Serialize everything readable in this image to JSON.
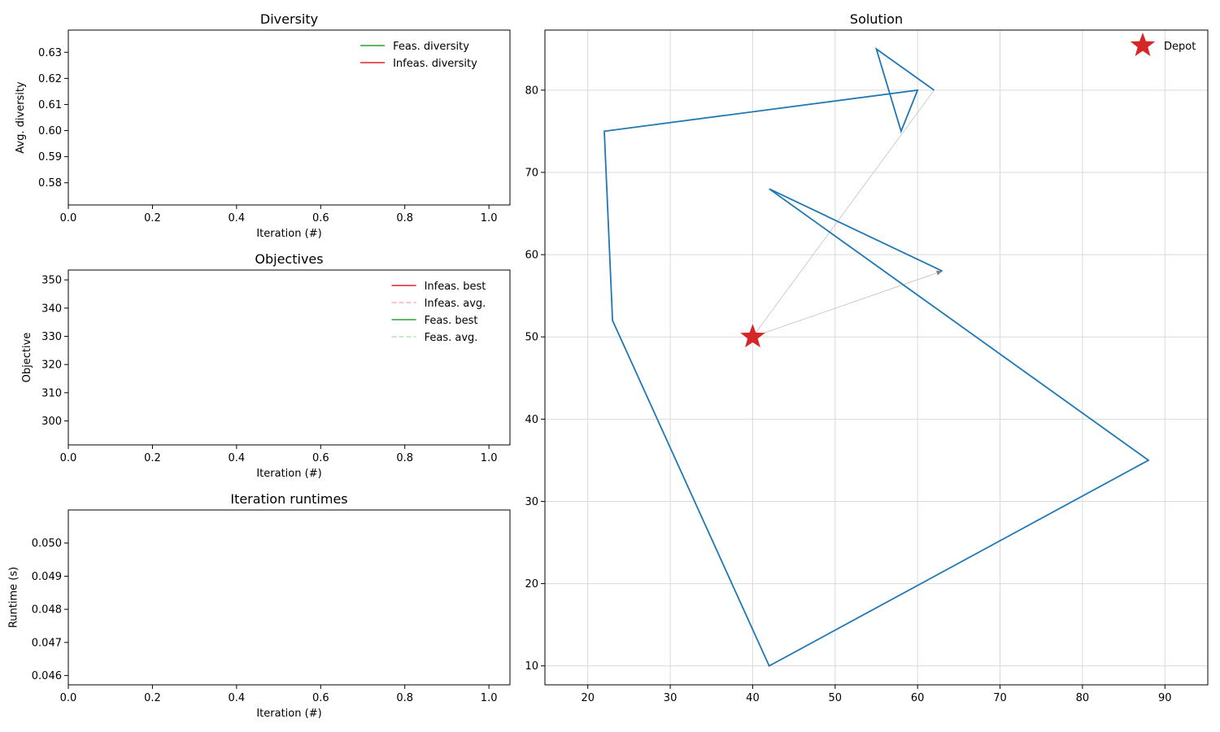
{
  "chart_data": [
    {
      "id": "diversity",
      "type": "line",
      "title": "Diversity",
      "xlabel": "Iteration (#)",
      "ylabel": "Avg. diversity",
      "xlim": [
        0.0,
        1.05
      ],
      "ylim": [
        0.5715,
        0.6385
      ],
      "xticks": [
        "0.0",
        "0.2",
        "0.4",
        "0.6",
        "0.8",
        "1.0"
      ],
      "xtick_values": [
        0.0,
        0.2,
        0.4,
        0.6,
        0.8,
        1.0
      ],
      "yticks": [
        "0.58",
        "0.59",
        "0.60",
        "0.61",
        "0.62",
        "0.63"
      ],
      "ytick_values": [
        0.58,
        0.59,
        0.6,
        0.61,
        0.62,
        0.63
      ],
      "grid": false,
      "legend_position": "upper right",
      "series": [
        {
          "name": "Feas. diversity",
          "color": "#2ca02c",
          "dash": "solid",
          "x": [],
          "y": []
        },
        {
          "name": "Infeas. diversity",
          "color": "#d62728",
          "dash": "solid",
          "x": [],
          "y": []
        }
      ]
    },
    {
      "id": "objectives",
      "type": "line",
      "title": "Objectives",
      "xlabel": "Iteration (#)",
      "ylabel": "Objective",
      "xlim": [
        0.0,
        1.05
      ],
      "ylim": [
        291.5,
        353.5
      ],
      "xticks": [
        "0.0",
        "0.2",
        "0.4",
        "0.6",
        "0.8",
        "1.0"
      ],
      "xtick_values": [
        0.0,
        0.2,
        0.4,
        0.6,
        0.8,
        1.0
      ],
      "yticks": [
        "300",
        "310",
        "320",
        "330",
        "340",
        "350"
      ],
      "ytick_values": [
        300,
        310,
        320,
        330,
        340,
        350
      ],
      "grid": false,
      "legend_position": "upper right",
      "series": [
        {
          "name": "Infeas. best",
          "color": "#d62728",
          "dash": "solid",
          "x": [],
          "y": []
        },
        {
          "name": "Infeas. avg.",
          "color": "#f2b3b3",
          "dash": "dashed",
          "x": [],
          "y": []
        },
        {
          "name": "Feas. best",
          "color": "#2ca02c",
          "dash": "solid",
          "x": [],
          "y": []
        },
        {
          "name": "Feas. avg.",
          "color": "#b7e0b7",
          "dash": "dashed",
          "x": [],
          "y": []
        }
      ]
    },
    {
      "id": "runtimes",
      "type": "line",
      "title": "Iteration runtimes",
      "xlabel": "Iteration (#)",
      "ylabel": "Runtime (s)",
      "xlim": [
        0.0,
        1.05
      ],
      "ylim": [
        0.04572,
        0.051
      ],
      "xticks": [
        "0.0",
        "0.2",
        "0.4",
        "0.6",
        "0.8",
        "1.0"
      ],
      "xtick_values": [
        0.0,
        0.2,
        0.4,
        0.6,
        0.8,
        1.0
      ],
      "yticks": [
        "0.046",
        "0.047",
        "0.048",
        "0.049",
        "0.050"
      ],
      "ytick_values": [
        0.046,
        0.047,
        0.048,
        0.049,
        0.05
      ],
      "grid": false,
      "series": []
    },
    {
      "id": "solution",
      "type": "line",
      "title": "Solution",
      "xlabel": "",
      "ylabel": "",
      "xlim": [
        14.8,
        95.2
      ],
      "ylim": [
        7.7,
        87.3
      ],
      "xticks": [
        "20",
        "30",
        "40",
        "50",
        "60",
        "70",
        "80",
        "90"
      ],
      "xtick_values": [
        20,
        30,
        40,
        50,
        60,
        70,
        80,
        90
      ],
      "yticks": [
        "10",
        "20",
        "30",
        "40",
        "50",
        "60",
        "70",
        "80"
      ],
      "ytick_values": [
        10,
        20,
        30,
        40,
        50,
        60,
        70,
        80
      ],
      "grid": true,
      "grid_color": "#d9d9d9",
      "legend_position": "upper right",
      "route": {
        "color": "#1f77b4",
        "x": [
          63,
          42,
          88,
          42,
          23,
          22,
          60,
          58,
          55,
          62
        ],
        "y": [
          58,
          68,
          35,
          10,
          52,
          75,
          80,
          75,
          85,
          80
        ]
      },
      "depot_links": {
        "color": "#b0b0b0",
        "arrow_color": "#808080",
        "segments": [
          {
            "from": [
              40,
              50
            ],
            "to": [
              63,
              58
            ]
          },
          {
            "from": [
              62,
              80
            ],
            "to": [
              40,
              50
            ]
          }
        ]
      },
      "depot": {
        "name": "Depot",
        "x": 40,
        "y": 50,
        "color": "#d62728",
        "marker": "star"
      }
    }
  ]
}
